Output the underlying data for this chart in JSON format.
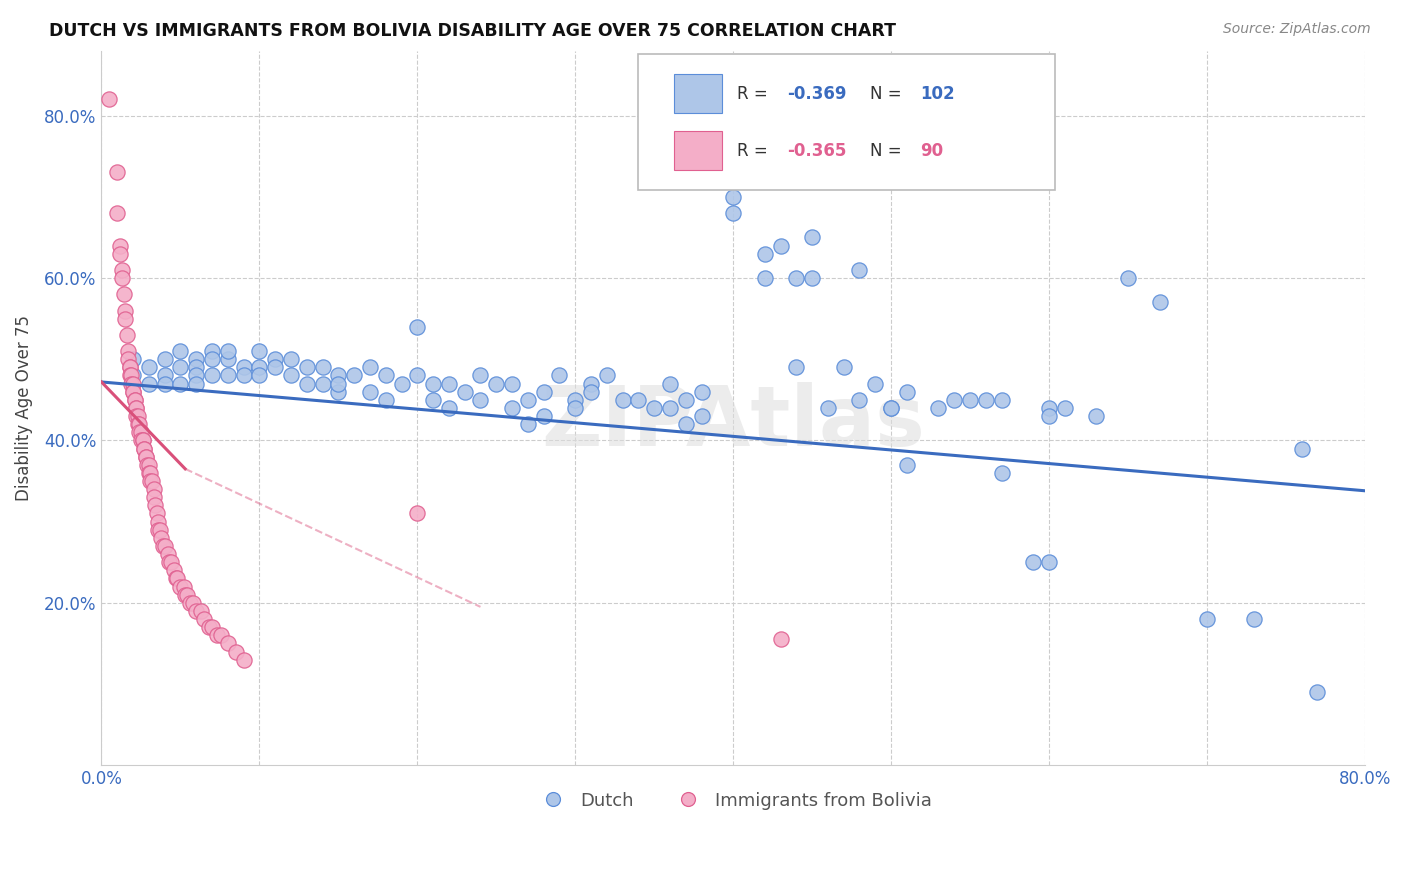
{
  "title": "DUTCH VS IMMIGRANTS FROM BOLIVIA DISABILITY AGE OVER 75 CORRELATION CHART",
  "source": "Source: ZipAtlas.com",
  "ylabel": "Disability Age Over 75",
  "legend_dutch": "Dutch",
  "legend_bolivia": "Immigrants from Bolivia",
  "dutch_R": "-0.369",
  "dutch_N": "102",
  "bolivia_R": "-0.365",
  "bolivia_N": "90",
  "dutch_color": "#aec6e8",
  "dutch_edge_color": "#5b8dd9",
  "bolivia_color": "#f4aec8",
  "bolivia_edge_color": "#e06090",
  "dutch_line_color": "#3a6bbf",
  "bolivia_line_color": "#d9507a",
  "background_color": "#ffffff",
  "watermark": "ZIPAtlas",
  "xlim": [
    0.0,
    0.8
  ],
  "ylim": [
    0.0,
    0.88
  ],
  "y_ticks": [
    0.2,
    0.4,
    0.6,
    0.8
  ],
  "x_ticks": [
    0.0,
    0.1,
    0.2,
    0.3,
    0.4,
    0.5,
    0.6,
    0.7,
    0.8
  ],
  "dutch_trendline": [
    0.0,
    0.472,
    0.8,
    0.338
  ],
  "bolivia_trendline_solid": [
    0.0,
    0.472,
    0.053,
    0.365
  ],
  "bolivia_trendline_dashed": [
    0.053,
    0.365,
    0.24,
    0.195
  ],
  "dutch_scatter": [
    [
      0.02,
      0.5
    ],
    [
      0.02,
      0.48
    ],
    [
      0.03,
      0.49
    ],
    [
      0.03,
      0.47
    ],
    [
      0.04,
      0.5
    ],
    [
      0.04,
      0.48
    ],
    [
      0.04,
      0.47
    ],
    [
      0.05,
      0.51
    ],
    [
      0.05,
      0.49
    ],
    [
      0.05,
      0.47
    ],
    [
      0.06,
      0.5
    ],
    [
      0.06,
      0.49
    ],
    [
      0.06,
      0.48
    ],
    [
      0.06,
      0.47
    ],
    [
      0.07,
      0.51
    ],
    [
      0.07,
      0.5
    ],
    [
      0.07,
      0.48
    ],
    [
      0.08,
      0.5
    ],
    [
      0.08,
      0.48
    ],
    [
      0.08,
      0.51
    ],
    [
      0.09,
      0.49
    ],
    [
      0.09,
      0.48
    ],
    [
      0.1,
      0.51
    ],
    [
      0.1,
      0.49
    ],
    [
      0.1,
      0.48
    ],
    [
      0.11,
      0.5
    ],
    [
      0.11,
      0.49
    ],
    [
      0.12,
      0.5
    ],
    [
      0.12,
      0.48
    ],
    [
      0.13,
      0.49
    ],
    [
      0.13,
      0.47
    ],
    [
      0.14,
      0.49
    ],
    [
      0.14,
      0.47
    ],
    [
      0.15,
      0.48
    ],
    [
      0.15,
      0.46
    ],
    [
      0.15,
      0.47
    ],
    [
      0.16,
      0.48
    ],
    [
      0.17,
      0.49
    ],
    [
      0.17,
      0.46
    ],
    [
      0.18,
      0.48
    ],
    [
      0.18,
      0.45
    ],
    [
      0.19,
      0.47
    ],
    [
      0.2,
      0.54
    ],
    [
      0.2,
      0.48
    ],
    [
      0.21,
      0.47
    ],
    [
      0.21,
      0.45
    ],
    [
      0.22,
      0.47
    ],
    [
      0.22,
      0.44
    ],
    [
      0.23,
      0.46
    ],
    [
      0.24,
      0.48
    ],
    [
      0.24,
      0.45
    ],
    [
      0.25,
      0.47
    ],
    [
      0.26,
      0.44
    ],
    [
      0.26,
      0.47
    ],
    [
      0.27,
      0.45
    ],
    [
      0.27,
      0.42
    ],
    [
      0.28,
      0.46
    ],
    [
      0.28,
      0.43
    ],
    [
      0.29,
      0.48
    ],
    [
      0.3,
      0.45
    ],
    [
      0.3,
      0.44
    ],
    [
      0.31,
      0.47
    ],
    [
      0.31,
      0.46
    ],
    [
      0.32,
      0.48
    ],
    [
      0.33,
      0.45
    ],
    [
      0.34,
      0.45
    ],
    [
      0.35,
      0.44
    ],
    [
      0.36,
      0.47
    ],
    [
      0.36,
      0.44
    ],
    [
      0.37,
      0.45
    ],
    [
      0.37,
      0.42
    ],
    [
      0.38,
      0.46
    ],
    [
      0.38,
      0.43
    ],
    [
      0.4,
      0.7
    ],
    [
      0.4,
      0.68
    ],
    [
      0.42,
      0.63
    ],
    [
      0.42,
      0.6
    ],
    [
      0.43,
      0.64
    ],
    [
      0.44,
      0.6
    ],
    [
      0.44,
      0.49
    ],
    [
      0.45,
      0.65
    ],
    [
      0.45,
      0.6
    ],
    [
      0.46,
      0.44
    ],
    [
      0.47,
      0.49
    ],
    [
      0.48,
      0.61
    ],
    [
      0.48,
      0.45
    ],
    [
      0.49,
      0.47
    ],
    [
      0.5,
      0.44
    ],
    [
      0.5,
      0.44
    ],
    [
      0.51,
      0.46
    ],
    [
      0.51,
      0.37
    ],
    [
      0.53,
      0.44
    ],
    [
      0.54,
      0.45
    ],
    [
      0.55,
      0.45
    ],
    [
      0.56,
      0.45
    ],
    [
      0.57,
      0.45
    ],
    [
      0.57,
      0.36
    ],
    [
      0.59,
      0.25
    ],
    [
      0.6,
      0.25
    ],
    [
      0.6,
      0.44
    ],
    [
      0.6,
      0.43
    ],
    [
      0.61,
      0.44
    ],
    [
      0.63,
      0.43
    ],
    [
      0.65,
      0.6
    ],
    [
      0.67,
      0.57
    ],
    [
      0.7,
      0.18
    ],
    [
      0.73,
      0.18
    ],
    [
      0.76,
      0.39
    ],
    [
      0.77,
      0.09
    ]
  ],
  "bolivia_scatter": [
    [
      0.005,
      0.82
    ],
    [
      0.01,
      0.73
    ],
    [
      0.01,
      0.68
    ],
    [
      0.012,
      0.64
    ],
    [
      0.012,
      0.63
    ],
    [
      0.013,
      0.61
    ],
    [
      0.013,
      0.6
    ],
    [
      0.014,
      0.58
    ],
    [
      0.015,
      0.56
    ],
    [
      0.015,
      0.55
    ],
    [
      0.016,
      0.53
    ],
    [
      0.017,
      0.51
    ],
    [
      0.017,
      0.5
    ],
    [
      0.018,
      0.49
    ],
    [
      0.018,
      0.49
    ],
    [
      0.018,
      0.48
    ],
    [
      0.019,
      0.48
    ],
    [
      0.019,
      0.47
    ],
    [
      0.02,
      0.47
    ],
    [
      0.02,
      0.46
    ],
    [
      0.02,
      0.46
    ],
    [
      0.021,
      0.45
    ],
    [
      0.021,
      0.45
    ],
    [
      0.022,
      0.44
    ],
    [
      0.022,
      0.44
    ],
    [
      0.022,
      0.43
    ],
    [
      0.023,
      0.43
    ],
    [
      0.023,
      0.42
    ],
    [
      0.024,
      0.42
    ],
    [
      0.024,
      0.41
    ],
    [
      0.025,
      0.41
    ],
    [
      0.025,
      0.4
    ],
    [
      0.026,
      0.4
    ],
    [
      0.026,
      0.4
    ],
    [
      0.027,
      0.39
    ],
    [
      0.027,
      0.39
    ],
    [
      0.028,
      0.38
    ],
    [
      0.028,
      0.38
    ],
    [
      0.029,
      0.37
    ],
    [
      0.03,
      0.37
    ],
    [
      0.03,
      0.36
    ],
    [
      0.031,
      0.36
    ],
    [
      0.031,
      0.35
    ],
    [
      0.032,
      0.35
    ],
    [
      0.033,
      0.34
    ],
    [
      0.033,
      0.33
    ],
    [
      0.034,
      0.32
    ],
    [
      0.035,
      0.31
    ],
    [
      0.036,
      0.3
    ],
    [
      0.036,
      0.29
    ],
    [
      0.037,
      0.29
    ],
    [
      0.038,
      0.28
    ],
    [
      0.039,
      0.27
    ],
    [
      0.04,
      0.27
    ],
    [
      0.042,
      0.26
    ],
    [
      0.043,
      0.25
    ],
    [
      0.044,
      0.25
    ],
    [
      0.046,
      0.24
    ],
    [
      0.047,
      0.23
    ],
    [
      0.048,
      0.23
    ],
    [
      0.05,
      0.22
    ],
    [
      0.052,
      0.22
    ],
    [
      0.053,
      0.21
    ],
    [
      0.054,
      0.21
    ],
    [
      0.056,
      0.2
    ],
    [
      0.058,
      0.2
    ],
    [
      0.06,
      0.19
    ],
    [
      0.063,
      0.19
    ],
    [
      0.065,
      0.18
    ],
    [
      0.068,
      0.17
    ],
    [
      0.07,
      0.17
    ],
    [
      0.073,
      0.16
    ],
    [
      0.076,
      0.16
    ],
    [
      0.08,
      0.15
    ],
    [
      0.085,
      0.14
    ],
    [
      0.09,
      0.13
    ],
    [
      0.2,
      0.31
    ],
    [
      0.43,
      0.155
    ]
  ]
}
